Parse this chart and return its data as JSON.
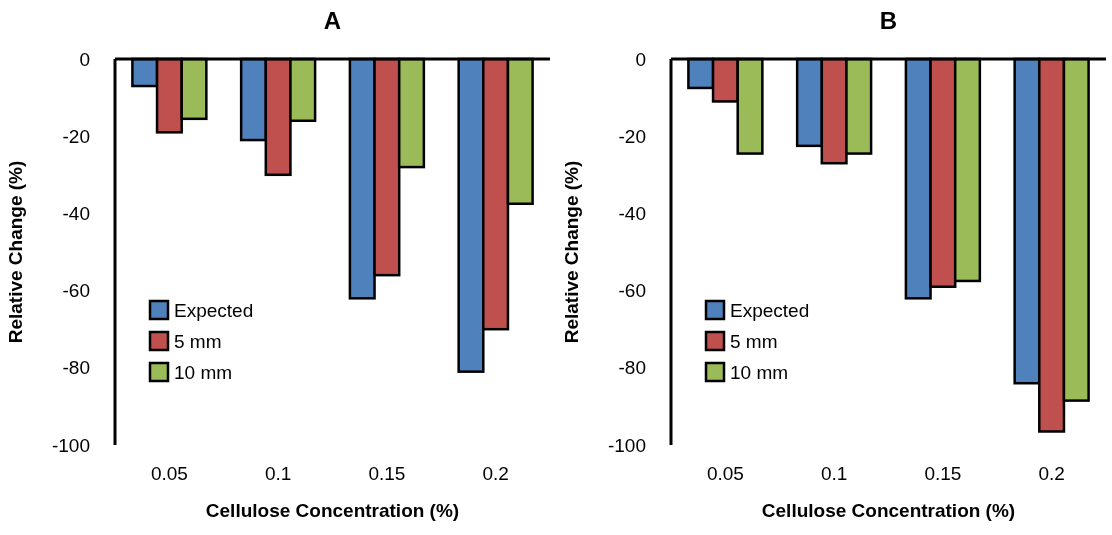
{
  "chart_data": [
    {
      "type": "bar",
      "title": "A",
      "xlabel": "Cellulose Concentration (%)",
      "ylabel": "Relative Change (%)",
      "categories": [
        "0.05",
        "0.1",
        "0.15",
        "0.2"
      ],
      "series": [
        {
          "name": "Expected",
          "color": "#4f81bd",
          "values": [
            -7,
            -21,
            -62,
            -81
          ]
        },
        {
          "name": "5 mm",
          "color": "#c0504d",
          "values": [
            -19,
            -30,
            -56,
            -70
          ]
        },
        {
          "name": "10 mm",
          "color": "#9bbb59",
          "values": [
            -15.5,
            -16,
            -28,
            -37.5
          ]
        }
      ],
      "ylim": [
        -100,
        0
      ],
      "yticks": [
        -100,
        -80,
        -60,
        -40,
        -20,
        0
      ],
      "grid": false,
      "legend": "bottom left"
    },
    {
      "type": "bar",
      "title": "B",
      "xlabel": "Cellulose Concentration (%)",
      "ylabel": "Relative Change (%)",
      "categories": [
        "0.05",
        "0.1",
        "0.15",
        "0.2"
      ],
      "series": [
        {
          "name": "Expected",
          "color": "#4f81bd",
          "values": [
            -7.5,
            -22.5,
            -62,
            -84
          ]
        },
        {
          "name": "5 mm",
          "color": "#c0504d",
          "values": [
            -11,
            -27,
            -59,
            -96.5
          ]
        },
        {
          "name": "10 mm",
          "color": "#9bbb59",
          "values": [
            -24.5,
            -24.5,
            -57.5,
            -88.5
          ]
        }
      ],
      "ylim": [
        -100,
        0
      ],
      "yticks": [
        -100,
        -80,
        -60,
        -40,
        -20,
        0
      ],
      "grid": false,
      "legend": "bottom left"
    }
  ]
}
